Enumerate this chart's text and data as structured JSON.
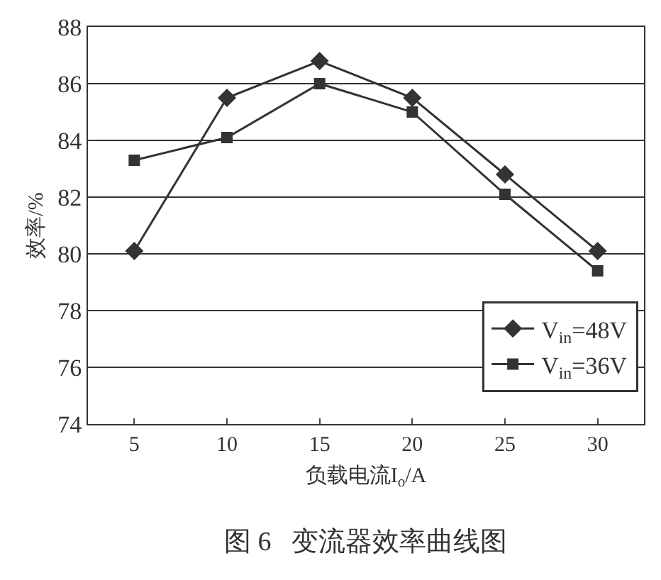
{
  "chart_data": {
    "type": "line",
    "title": "图 6   变流器效率曲线图",
    "xlabel": "负载电流I$_{o}$/A",
    "ylabel": "效率/%",
    "categories": [
      "5",
      "10",
      "15",
      "20",
      "25",
      "30"
    ],
    "series": [
      {
        "name": "V$_{in}$=48V",
        "color": "#333333",
        "marker": "diamond",
        "values": [
          80.1,
          85.5,
          86.8,
          85.5,
          82.8,
          80.1
        ]
      },
      {
        "name": "V$_{in}$=36V",
        "color": "#333333",
        "marker": "square",
        "values": [
          83.3,
          84.1,
          86.0,
          85.0,
          82.1,
          79.4
        ]
      }
    ],
    "ylim": [
      74,
      88
    ],
    "yticks": [
      74,
      76,
      78,
      80,
      82,
      84,
      86,
      88
    ],
    "grid": "y",
    "legend": "bottom right",
    "line_style": "solid"
  }
}
